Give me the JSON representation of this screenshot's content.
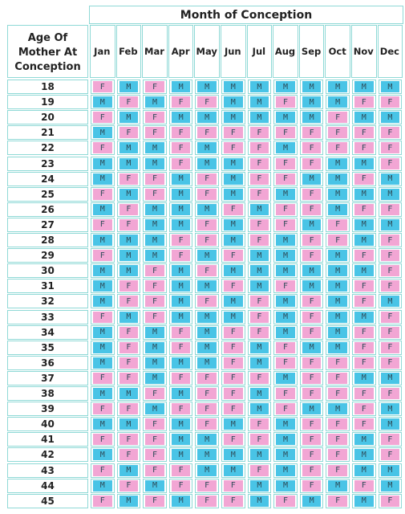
{
  "title": "Month of Conception",
  "age_header_lines": [
    "Age Of",
    "Mother At",
    "Conception"
  ],
  "months": [
    "Jan",
    "Feb",
    "Mar",
    "Apr",
    "May",
    "Jun",
    "Jul",
    "Aug",
    "Sep",
    "Oct",
    "Nov",
    "Dec"
  ],
  "ages": [
    "18",
    "19",
    "20",
    "21",
    "22",
    "23",
    "24",
    "25",
    "26",
    "27",
    "28",
    "29",
    "30",
    "31",
    "32",
    "33",
    "34",
    "35",
    "36",
    "37",
    "38",
    "39",
    "40",
    "41",
    "42",
    "43",
    "44",
    "45"
  ],
  "colors": {
    "F": "#f2a6d4",
    "M": "#49c4e6",
    "border": "#8fd9d6"
  },
  "grid": [
    [
      "F",
      "M",
      "F",
      "M",
      "M",
      "M",
      "M",
      "M",
      "M",
      "M",
      "M",
      "M"
    ],
    [
      "M",
      "F",
      "M",
      "F",
      "F",
      "M",
      "M",
      "F",
      "M",
      "M",
      "F",
      "F"
    ],
    [
      "F",
      "M",
      "F",
      "M",
      "M",
      "M",
      "M",
      "M",
      "M",
      "F",
      "M",
      "M"
    ],
    [
      "M",
      "F",
      "F",
      "F",
      "F",
      "F",
      "F",
      "F",
      "F",
      "F",
      "F",
      "F"
    ],
    [
      "F",
      "M",
      "M",
      "F",
      "M",
      "F",
      "F",
      "M",
      "F",
      "F",
      "F",
      "F"
    ],
    [
      "M",
      "M",
      "M",
      "F",
      "M",
      "M",
      "F",
      "F",
      "F",
      "M",
      "M",
      "F"
    ],
    [
      "M",
      "F",
      "F",
      "M",
      "F",
      "M",
      "F",
      "F",
      "M",
      "M",
      "F",
      "M"
    ],
    [
      "F",
      "M",
      "F",
      "M",
      "F",
      "M",
      "F",
      "M",
      "F",
      "M",
      "M",
      "M"
    ],
    [
      "M",
      "F",
      "M",
      "M",
      "M",
      "F",
      "M",
      "F",
      "F",
      "M",
      "F",
      "F"
    ],
    [
      "F",
      "F",
      "M",
      "M",
      "F",
      "M",
      "F",
      "F",
      "M",
      "F",
      "M",
      "M"
    ],
    [
      "M",
      "M",
      "M",
      "F",
      "F",
      "M",
      "F",
      "M",
      "F",
      "F",
      "M",
      "F"
    ],
    [
      "F",
      "M",
      "M",
      "F",
      "M",
      "F",
      "M",
      "M",
      "F",
      "M",
      "F",
      "F"
    ],
    [
      "M",
      "M",
      "F",
      "M",
      "F",
      "M",
      "M",
      "M",
      "M",
      "M",
      "M",
      "F"
    ],
    [
      "M",
      "F",
      "F",
      "M",
      "M",
      "F",
      "M",
      "F",
      "M",
      "M",
      "F",
      "F"
    ],
    [
      "M",
      "F",
      "F",
      "M",
      "F",
      "M",
      "F",
      "M",
      "F",
      "M",
      "F",
      "M"
    ],
    [
      "F",
      "M",
      "F",
      "M",
      "M",
      "M",
      "F",
      "M",
      "F",
      "M",
      "M",
      "F"
    ],
    [
      "M",
      "F",
      "M",
      "F",
      "M",
      "F",
      "F",
      "M",
      "F",
      "M",
      "F",
      "F"
    ],
    [
      "M",
      "F",
      "M",
      "F",
      "M",
      "F",
      "M",
      "F",
      "M",
      "M",
      "F",
      "F"
    ],
    [
      "M",
      "F",
      "M",
      "M",
      "M",
      "F",
      "M",
      "F",
      "F",
      "F",
      "F",
      "F"
    ],
    [
      "F",
      "F",
      "M",
      "F",
      "F",
      "F",
      "F",
      "M",
      "F",
      "F",
      "M",
      "M"
    ],
    [
      "M",
      "M",
      "F",
      "M",
      "F",
      "F",
      "M",
      "F",
      "F",
      "F",
      "F",
      "F"
    ],
    [
      "F",
      "F",
      "M",
      "F",
      "F",
      "F",
      "M",
      "F",
      "M",
      "M",
      "F",
      "M"
    ],
    [
      "M",
      "M",
      "F",
      "M",
      "F",
      "M",
      "F",
      "M",
      "F",
      "F",
      "F",
      "M"
    ],
    [
      "F",
      "F",
      "F",
      "M",
      "M",
      "F",
      "F",
      "M",
      "F",
      "F",
      "M",
      "F"
    ],
    [
      "M",
      "F",
      "F",
      "M",
      "M",
      "M",
      "M",
      "M",
      "F",
      "F",
      "M",
      "F"
    ],
    [
      "F",
      "M",
      "F",
      "F",
      "M",
      "M",
      "F",
      "M",
      "F",
      "F",
      "M",
      "M"
    ],
    [
      "M",
      "F",
      "M",
      "F",
      "F",
      "F",
      "M",
      "M",
      "F",
      "M",
      "F",
      "M"
    ],
    [
      "F",
      "M",
      "F",
      "M",
      "F",
      "F",
      "M",
      "F",
      "M",
      "F",
      "M",
      "F"
    ]
  ]
}
